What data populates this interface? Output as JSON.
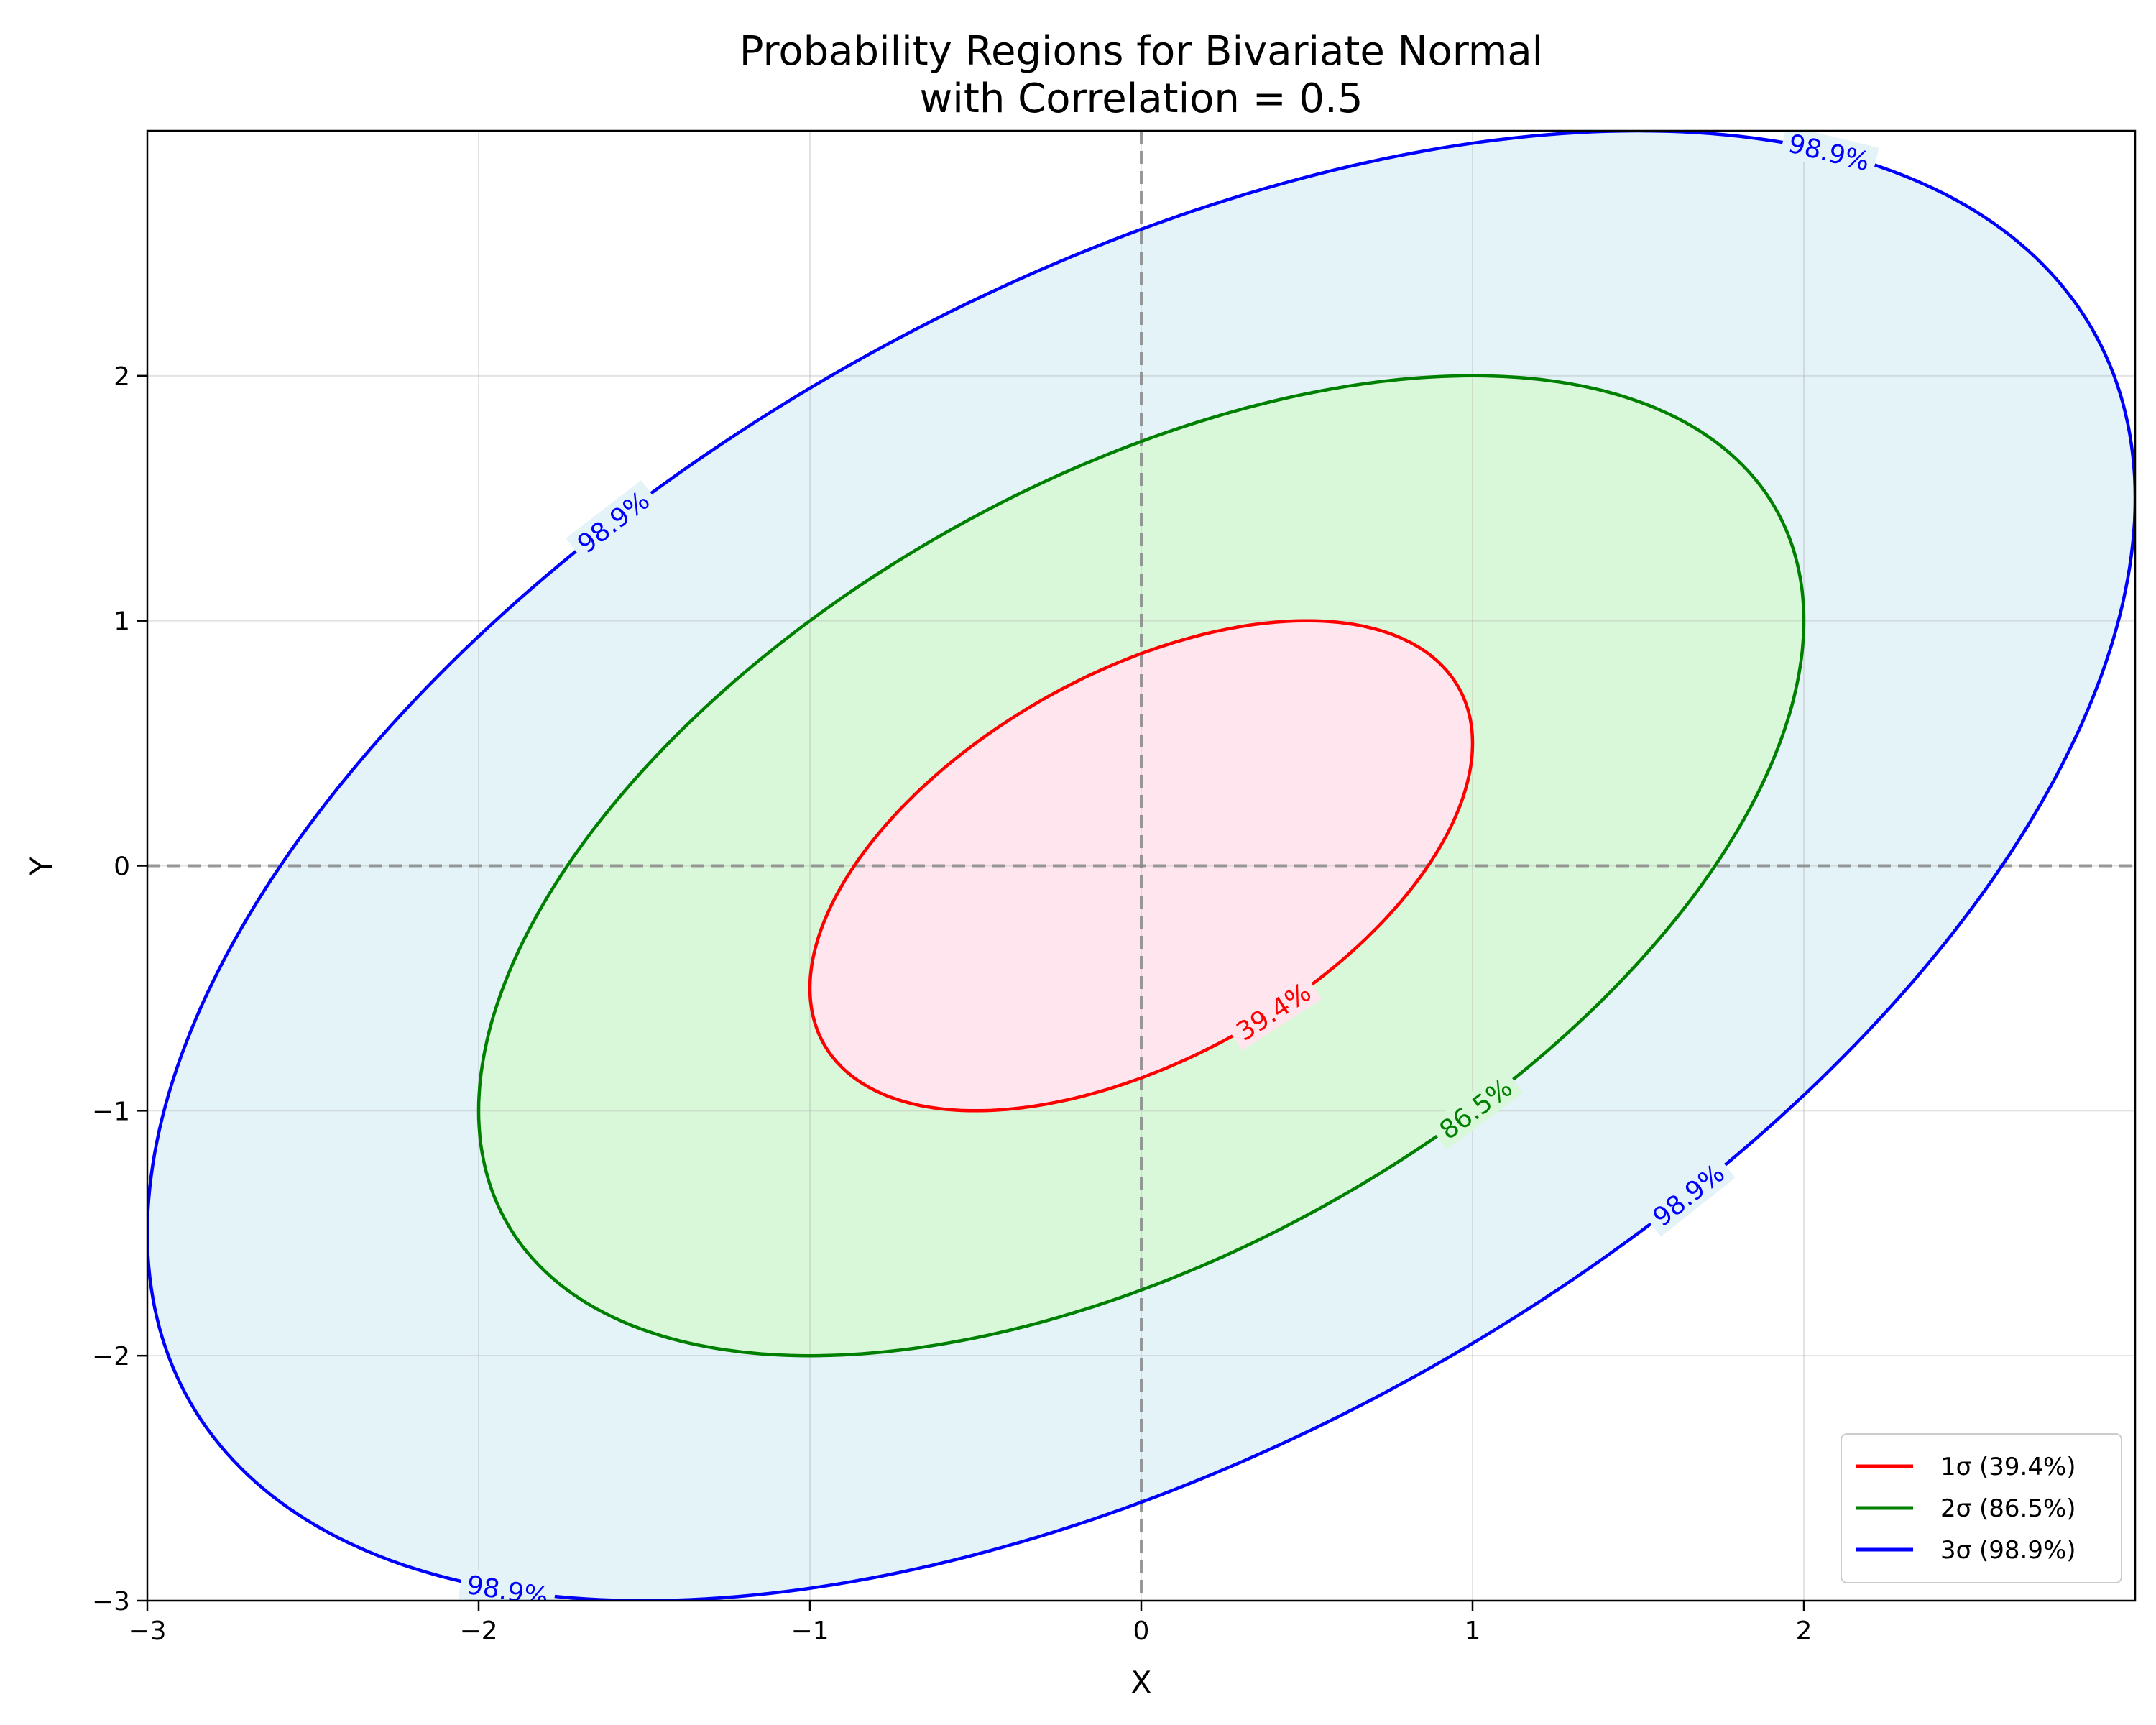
{
  "chart_data": {
    "type": "contour",
    "title_lines": [
      "Probability Regions for Bivariate Normal",
      "with Correlation = 0.5"
    ],
    "xlabel": "X",
    "ylabel": "Y",
    "xlim": [
      -3,
      3
    ],
    "ylim": [
      -3,
      3
    ],
    "x_ticks": [
      -3,
      -2,
      -1,
      0,
      1,
      2
    ],
    "y_ticks": [
      -3,
      -2,
      -1,
      0,
      1,
      2
    ],
    "x_tick_labels": [
      "−3",
      "−2",
      "−1",
      "0",
      "1",
      "2"
    ],
    "y_tick_labels": [
      "−3",
      "−2",
      "−1",
      "0",
      "1",
      "2"
    ],
    "grid": true,
    "reference_lines": [
      {
        "orientation": "vertical",
        "value": 0,
        "style": "dashed",
        "color": "#888888"
      },
      {
        "orientation": "horizontal",
        "value": 0,
        "style": "dashed",
        "color": "#888888"
      }
    ],
    "correlation": 0.5,
    "series": [
      {
        "name": "1σ (39.4%)",
        "sigma": 1,
        "probability_label": "39.4%",
        "line_color": "#ff0000",
        "fill_color": "#ffe6ee",
        "label_positions": [
          {
            "x": 0.42,
            "y": -0.62
          }
        ]
      },
      {
        "name": "2σ (86.5%)",
        "sigma": 2,
        "probability_label": "86.5%",
        "line_color": "#008000",
        "fill_color": "#d9f7d9",
        "label_positions": [
          {
            "x": 1.0,
            "y": -0.98
          }
        ]
      },
      {
        "name": "3σ (98.9%)",
        "sigma": 3,
        "probability_label": "98.9%",
        "line_color": "#0000ff",
        "fill_color": "#e3f3f8",
        "label_positions": [
          {
            "x": -1.8,
            "y": 1.6
          },
          {
            "x": 2.07,
            "y": 2.9
          },
          {
            "x": 1.65,
            "y": -1.34
          },
          {
            "x": -1.9,
            "y": -2.9
          }
        ]
      }
    ],
    "legend": {
      "position": "bottom-right",
      "entries": [
        "1σ (39.4%)",
        "2σ (86.5%)",
        "3σ (98.9%)"
      ]
    }
  }
}
